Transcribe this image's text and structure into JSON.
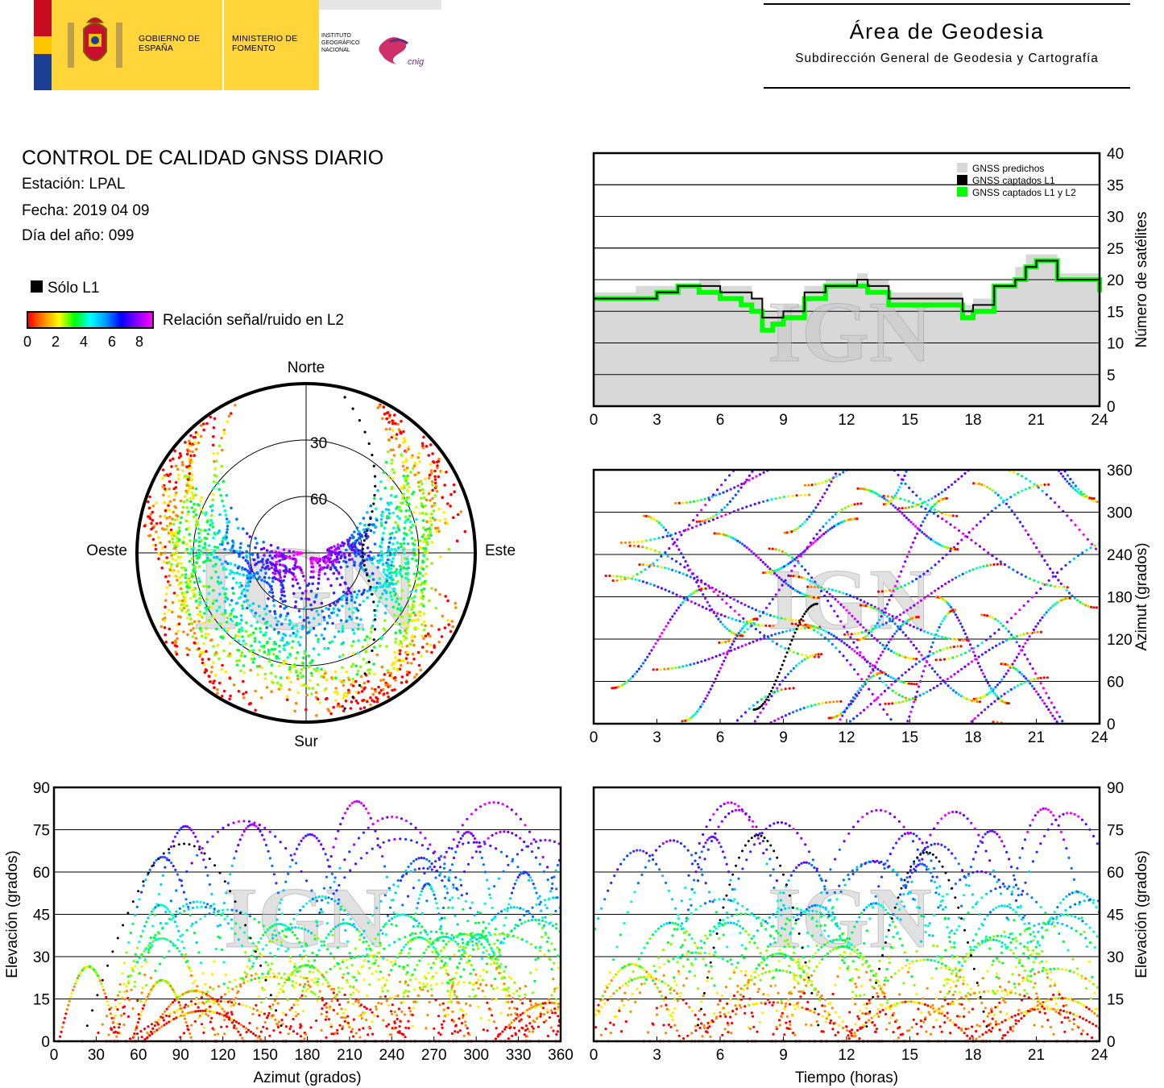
{
  "header": {
    "gobierno": "GOBIERNO DE ESPAÑA",
    "ministerio": "MINISTERIO DE FOMENTO",
    "instituto": "INSTITUTO GEOGRÁFICO NACIONAL",
    "cnig": "cnig",
    "area_title": "Área de Geodesia",
    "area_subtitle": "Subdirección General de Geodesia y Cartografía"
  },
  "report": {
    "title": "CONTROL DE CALIDAD GNSS DIARIO",
    "station": "Estación: LPAL",
    "date": "Fecha: 2019 04 09",
    "doy": "Día del año: 099"
  },
  "legend": {
    "solo_l1": "Sólo L1",
    "snr_label": "Relación señal/ruido en L2",
    "snr_ticks": [
      "0",
      "2",
      "4",
      "6",
      "8"
    ]
  },
  "watermark": "IGN",
  "colors": {
    "predicted": "#d8d8d8",
    "l1": "#000000",
    "l1l2": "#00ff00"
  },
  "chart_data": [
    {
      "type": "area",
      "id": "satellite-count",
      "xlabel": "",
      "ylabel": "Número de satélites",
      "xlim": [
        0,
        24
      ],
      "ylim": [
        0,
        40
      ],
      "xticks": [
        0,
        3,
        6,
        9,
        12,
        15,
        18,
        21,
        24
      ],
      "yticks": [
        0,
        5,
        10,
        15,
        20,
        25,
        30,
        35,
        40
      ],
      "grid": true,
      "legend_position": "top-right",
      "x": [
        0,
        1,
        2,
        3,
        4,
        5,
        6,
        7,
        7.5,
        8,
        8.5,
        9,
        10,
        11,
        12,
        12.5,
        13,
        14,
        15,
        16,
        17,
        17.5,
        18,
        19,
        20,
        20.5,
        21,
        22,
        23,
        24
      ],
      "series": [
        {
          "name": "GNSS predichos",
          "values": [
            18,
            18,
            19,
            19,
            19,
            20,
            19,
            19,
            17,
            15,
            15,
            16,
            19,
            20,
            20,
            21,
            20,
            18,
            18,
            18,
            18,
            16,
            17,
            19,
            22,
            24,
            24,
            21,
            21,
            19
          ]
        },
        {
          "name": "GNSS captados L1",
          "values": [
            17,
            17,
            17,
            18,
            19,
            19,
            18,
            18,
            17,
            14,
            14,
            15,
            18,
            19,
            19,
            20,
            19,
            17,
            17,
            17,
            17,
            15,
            16,
            19,
            20,
            22,
            23,
            20,
            20,
            18
          ]
        },
        {
          "name": "GNSS captados L1 y L2",
          "values": [
            17,
            17,
            17,
            18,
            19,
            18,
            17,
            16,
            15,
            12,
            13,
            14,
            17,
            19,
            19,
            19,
            18,
            16,
            16,
            16,
            16,
            14,
            15,
            19,
            20,
            22,
            23,
            20,
            20,
            18
          ]
        }
      ]
    },
    {
      "type": "scatter",
      "id": "skyplot",
      "labels": {
        "north": "Norte",
        "south": "Sur",
        "west": "Oeste",
        "east": "Este"
      },
      "elevation_rings": [
        30,
        60
      ],
      "ring_labels": [
        "30",
        "60"
      ],
      "color_scale": "Relación señal/ruido en L2 (0-8)"
    },
    {
      "type": "scatter",
      "id": "azimuth-vs-time",
      "xlabel": "",
      "ylabel": "Azimut (grados)",
      "xlim": [
        0,
        24
      ],
      "ylim": [
        0,
        360
      ],
      "xticks": [
        0,
        3,
        6,
        9,
        12,
        15,
        18,
        21,
        24
      ],
      "yticks": [
        0,
        60,
        120,
        180,
        240,
        300,
        360
      ],
      "grid": true
    },
    {
      "type": "scatter",
      "id": "elevation-vs-azimuth",
      "xlabel": "Azimut (grados)",
      "ylabel": "Elevación (grados)",
      "xlim": [
        0,
        360
      ],
      "ylim": [
        0,
        90
      ],
      "xticks": [
        0,
        30,
        60,
        90,
        120,
        150,
        180,
        210,
        240,
        270,
        300,
        330,
        360
      ],
      "yticks": [
        0,
        15,
        30,
        45,
        60,
        75,
        90
      ],
      "grid": true
    },
    {
      "type": "scatter",
      "id": "elevation-vs-time",
      "xlabel": "Tiempo (horas)",
      "ylabel": "Elevación (grados)",
      "xlim": [
        0,
        24
      ],
      "ylim": [
        0,
        90
      ],
      "xticks": [
        0,
        3,
        6,
        9,
        12,
        15,
        18,
        21,
        24
      ],
      "yticks": [
        0,
        15,
        30,
        45,
        60,
        75,
        90
      ],
      "grid": true
    }
  ]
}
